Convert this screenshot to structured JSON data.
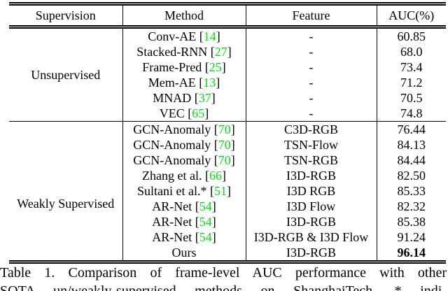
{
  "colors": {
    "citation_green": "#00dd11",
    "rule_black": "#000000"
  },
  "table": {
    "headers": [
      "Supervision",
      "Method",
      "Feature",
      "AUC(%)"
    ],
    "groups": [
      {
        "supervision": "Unsupervised",
        "rows": [
          {
            "method": "Conv-AE",
            "cite": "14",
            "feature": "-",
            "auc": "60.85",
            "auc_bold": false
          },
          {
            "method": "Stacked-RNN",
            "cite": "27",
            "feature": "-",
            "auc": "68.0",
            "auc_bold": false
          },
          {
            "method": "Frame-Pred",
            "cite": "25",
            "feature": "-",
            "auc": "73.4",
            "auc_bold": false
          },
          {
            "method": "Mem-AE",
            "cite": "13",
            "feature": "-",
            "auc": "71.2",
            "auc_bold": false
          },
          {
            "method": "MNAD",
            "cite": "37",
            "feature": "-",
            "auc": "70.5",
            "auc_bold": false
          },
          {
            "method": "VEC",
            "cite": "65",
            "feature": "-",
            "auc": "74.8",
            "auc_bold": false
          }
        ]
      },
      {
        "supervision": "Weakly Supervised",
        "rows": [
          {
            "method": "GCN-Anomaly",
            "cite": "70",
            "feature": "C3D-RGB",
            "auc": "76.44",
            "auc_bold": false
          },
          {
            "method": "GCN-Anomaly",
            "cite": "70",
            "feature": "TSN-Flow",
            "auc": "84.13",
            "auc_bold": false
          },
          {
            "method": "GCN-Anomaly",
            "cite": "70",
            "feature": "TSN-RGB",
            "auc": "84.44",
            "auc_bold": false
          },
          {
            "method": "Zhang et al.",
            "cite": "66",
            "feature": "I3D-RGB",
            "auc": "82.50",
            "auc_bold": false
          },
          {
            "method": "Sultani et al.*",
            "cite": "51",
            "feature": "I3D RGB",
            "auc": "85.33",
            "auc_bold": false
          },
          {
            "method": "AR-Net",
            "cite": "54",
            "feature": "I3D Flow",
            "auc": "82.32",
            "auc_bold": false
          },
          {
            "method": "AR-Net",
            "cite": "54",
            "feature": "I3D-RGB",
            "auc": "85.38",
            "auc_bold": false
          },
          {
            "method": "AR-Net",
            "cite": "54",
            "feature": "I3D-RGB & I3D Flow",
            "auc": "91.24",
            "auc_bold": false
          },
          {
            "method": "Ours",
            "cite": null,
            "feature": "I3D-RGB",
            "auc": "96.14",
            "auc_bold": true
          }
        ]
      }
    ]
  },
  "caption": {
    "line1": "Table 1. Comparison of frame-level AUC performance with other",
    "line2": "SOTA un/weakly-supervised methods on ShanghaiTech. * indi-"
  }
}
